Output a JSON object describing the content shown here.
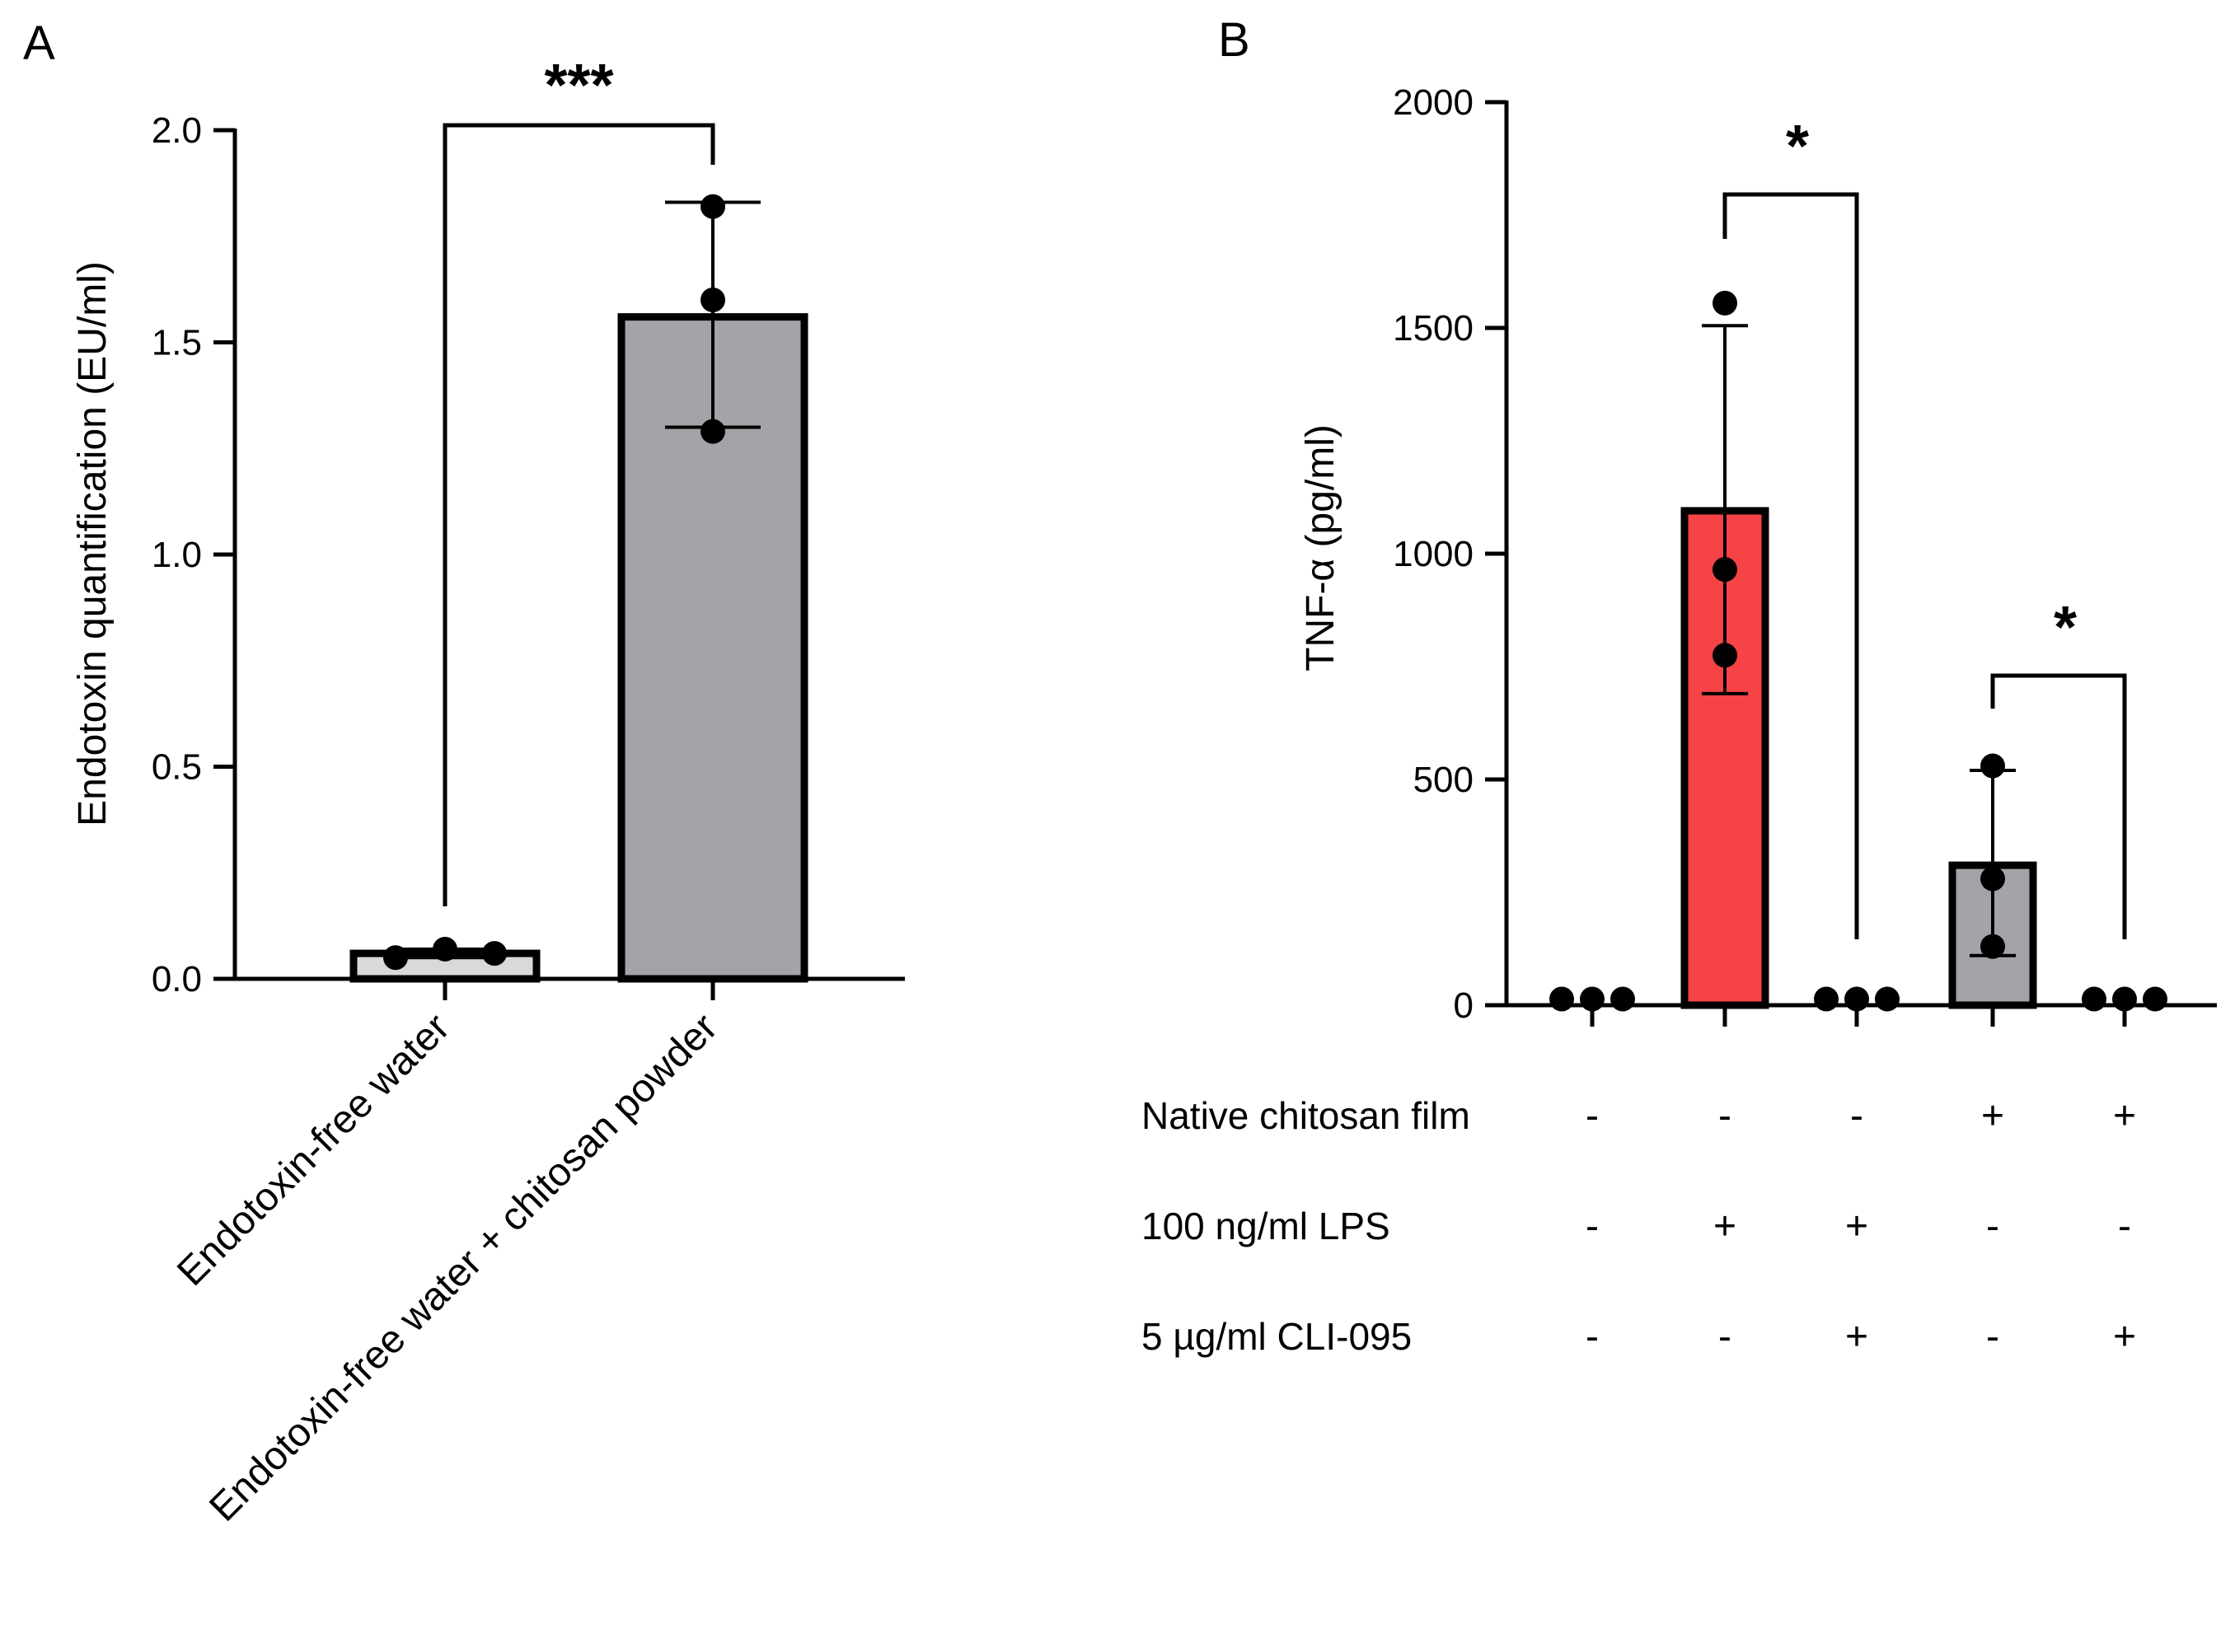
{
  "chart_data": [
    {
      "panel": "A",
      "type": "bar",
      "ylabel": "Endotoxin quantification (EU/ml)",
      "ylim": [
        0,
        2.0
      ],
      "yticks": [
        0,
        0.5,
        1.0,
        1.5,
        2.0
      ],
      "ytick_labels": [
        "0.0",
        "0.5",
        "1.0",
        "1.5",
        "2.0"
      ],
      "categories": [
        "Endotoxin-free water",
        "Endotoxin-free water + chitosan powder"
      ],
      "values": [
        0.06,
        1.56
      ],
      "error_low": [
        0.05,
        1.3
      ],
      "error_high": [
        0.07,
        1.83
      ],
      "points": [
        [
          0.05,
          0.07,
          0.06
        ],
        [
          1.82,
          1.6,
          1.29
        ]
      ],
      "bar_colors": [
        "#d9d9d9",
        "#a3a3a8"
      ],
      "significance": [
        {
          "from": 0,
          "to": 1,
          "label": "***"
        }
      ]
    },
    {
      "panel": "B",
      "type": "bar",
      "ylabel": "TNF-α (pg/ml)",
      "ylim": [
        0,
        2000
      ],
      "yticks": [
        0,
        500,
        1000,
        1500,
        2000
      ],
      "ytick_labels": [
        "0",
        "500",
        "1000",
        "1500",
        "2000"
      ],
      "values": [
        10,
        1095,
        10,
        310,
        10
      ],
      "error_low": [
        10,
        690,
        10,
        110,
        10
      ],
      "error_high": [
        10,
        1505,
        10,
        520,
        10
      ],
      "points": [
        [
          10,
          10,
          10
        ],
        [
          1555,
          965,
          775
        ],
        [
          10,
          10,
          10
        ],
        [
          530,
          280,
          130
        ],
        [
          10,
          10,
          10
        ]
      ],
      "bar_colors": [
        "#ffffff",
        "#f64346",
        "#ffffff",
        "#a3a3a8",
        "#ffffff"
      ],
      "significance": [
        {
          "from": 1,
          "to": 2,
          "label": "*"
        },
        {
          "from": 3,
          "to": 4,
          "label": "*"
        }
      ],
      "conditions": [
        {
          "label": "Native chitosan film",
          "signs": [
            "-",
            "-",
            "-",
            "+",
            "+"
          ]
        },
        {
          "label": "100 ng/ml LPS",
          "signs": [
            "-",
            "+",
            "+",
            "-",
            "-"
          ]
        },
        {
          "label": "5 µg/ml CLI-095",
          "signs": [
            "-",
            "-",
            "+",
            "-",
            "+"
          ]
        }
      ]
    }
  ]
}
